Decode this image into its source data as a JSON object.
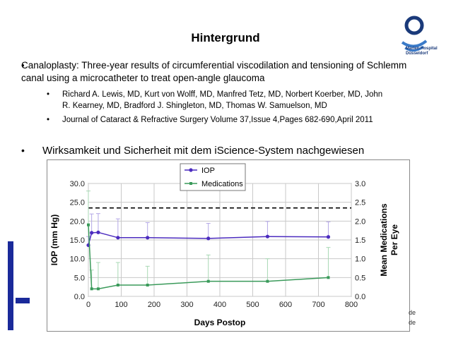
{
  "slide": {
    "title": "Hintergrund",
    "bullet1": "Canaloplasty: Three-year results of circumferential viscodilation and tensioning of Schlemm canal using a microcatheter to treat open-angle glaucoma",
    "sub1": "Richard A. Lewis, MD, Kurt von Wolff, MD, Manfred Tetz, MD, Norbert Koerber, MD, John R. Kearney, MD, Bradford J. Shingleton, MD, Thomas W. Samuelson, MD",
    "sub2": "Journal of Cataract & Refractive Surgery Volume 37,Issue 4,Pages 682-690,April 2011",
    "bullet2": "Wirksamkeit und Sicherheit mit dem iScience-System nachgewiesen",
    "bullet_symbol": "•",
    "logo_text_1": "Marien Hospital",
    "logo_text_2": "Düsseldorf",
    "corner_a": "de",
    "corner_b": "de",
    "colors": {
      "navy": "#1a2a9a",
      "iop": "#4b2bbf",
      "meds": "#3a9a5a"
    }
  },
  "chart_data": {
    "type": "line",
    "xlabel": "Days Postop",
    "ylabel": "IOP (mm Hg)",
    "y2label_line1": "Mean Medications",
    "y2label_line2": "Per Eye",
    "xlim": [
      0,
      800
    ],
    "ylim": [
      0,
      30
    ],
    "y2lim": [
      0,
      3
    ],
    "x_ticks": [
      "0",
      "100",
      "200",
      "300",
      "400",
      "500",
      "600",
      "700",
      "800"
    ],
    "y_ticks": [
      "0.0",
      "5.0",
      "10.0",
      "15.0",
      "20.0",
      "25.0",
      "30.0"
    ],
    "y2_ticks": [
      "0.0",
      "0.5",
      "1.0",
      "1.5",
      "2.0",
      "2.5",
      "3.0"
    ],
    "grid": true,
    "legend_position": "top-left",
    "baseline_iop_dashed": 23.5,
    "series": [
      {
        "name": "IOP",
        "axis": "left",
        "x": [
          0,
          10,
          30,
          90,
          180,
          365,
          545,
          730
        ],
        "y": [
          13.6,
          16.9,
          17.0,
          15.6,
          15.6,
          15.4,
          15.9,
          15.8
        ],
        "err_up": [
          2.3,
          5.0,
          5.0,
          5.0,
          4.0,
          4.0,
          4.0,
          4.0
        ]
      },
      {
        "name": "Medications",
        "axis": "right",
        "x": [
          0,
          10,
          30,
          90,
          180,
          365,
          545,
          730
        ],
        "y": [
          1.9,
          0.2,
          0.2,
          0.3,
          0.3,
          0.4,
          0.4,
          0.5
        ],
        "err_up": [
          0.9,
          0.5,
          0.7,
          0.6,
          0.5,
          0.7,
          0.6,
          0.8
        ]
      }
    ]
  }
}
